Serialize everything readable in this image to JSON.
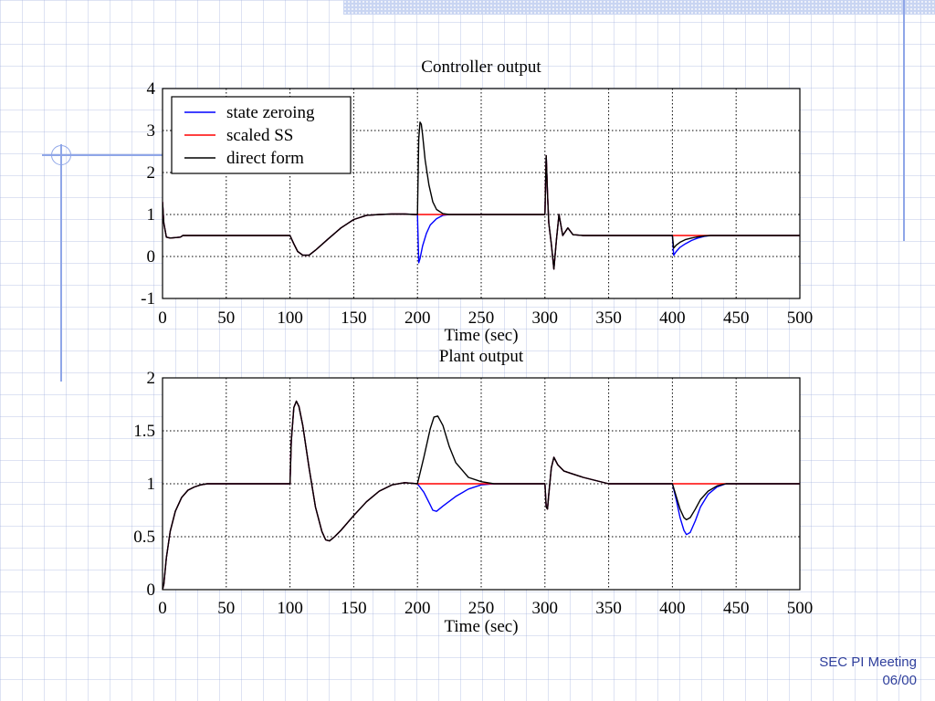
{
  "footer": {
    "line1": "SEC PI Meeting",
    "line2": "06/00"
  },
  "colors": {
    "accent": "#8fa6e8",
    "footer_text": "#2f3f9c"
  },
  "chart_data": [
    {
      "type": "line",
      "title": "Controller output",
      "xlabel": "Time (sec)",
      "ylabel": "",
      "xlim": [
        0,
        500
      ],
      "ylim": [
        -1,
        4
      ],
      "xticks": [
        0,
        50,
        100,
        150,
        200,
        250,
        300,
        350,
        400,
        450,
        500
      ],
      "yticks": [
        -1,
        0,
        1,
        2,
        3,
        4
      ],
      "grid": true,
      "legend": "top-left",
      "series": [
        {
          "name": "state zeroing",
          "color": "#0000ff",
          "x": [
            0,
            1,
            3,
            6,
            10,
            14,
            16,
            100,
            103,
            106,
            110,
            115,
            120,
            130,
            140,
            150,
            160,
            170,
            180,
            190,
            198,
            200,
            201,
            202,
            204,
            207,
            210,
            215,
            220,
            225,
            300,
            301,
            302,
            303,
            305,
            307,
            309,
            311,
            314,
            318,
            322,
            330,
            400,
            401,
            403,
            406,
            410,
            415,
            420,
            425,
            430,
            500
          ],
          "y": [
            1.3,
            0.8,
            0.46,
            0.44,
            0.45,
            0.46,
            0.5,
            0.5,
            0.3,
            0.12,
            0.03,
            0.03,
            0.15,
            0.42,
            0.68,
            0.88,
            0.98,
            1.0,
            1.01,
            1.01,
            1.0,
            1.0,
            -0.15,
            -0.05,
            0.25,
            0.55,
            0.75,
            0.9,
            0.98,
            1.0,
            1.0,
            2.4,
            1.5,
            0.8,
            0.3,
            -0.3,
            0.4,
            1.0,
            0.5,
            0.68,
            0.52,
            0.5,
            0.5,
            0.03,
            0.12,
            0.22,
            0.3,
            0.38,
            0.44,
            0.48,
            0.5,
            0.5
          ]
        },
        {
          "name": "scaled SS",
          "color": "#ff0000",
          "x": [
            0,
            1,
            3,
            6,
            10,
            14,
            16,
            100,
            103,
            106,
            110,
            115,
            120,
            130,
            140,
            150,
            160,
            170,
            180,
            190,
            198,
            200,
            300,
            301,
            302,
            303,
            305,
            307,
            309,
            311,
            314,
            318,
            322,
            330,
            500
          ],
          "y": [
            1.3,
            0.8,
            0.46,
            0.44,
            0.45,
            0.46,
            0.5,
            0.5,
            0.3,
            0.12,
            0.03,
            0.03,
            0.15,
            0.42,
            0.68,
            0.88,
            0.98,
            1.0,
            1.01,
            1.01,
            1.0,
            1.0,
            1.0,
            2.4,
            1.5,
            0.8,
            0.3,
            -0.3,
            0.4,
            1.0,
            0.5,
            0.68,
            0.52,
            0.5,
            0.5
          ]
        },
        {
          "name": "direct form",
          "color": "#000000",
          "x": [
            0,
            1,
            3,
            6,
            10,
            14,
            16,
            100,
            103,
            106,
            110,
            115,
            120,
            130,
            140,
            150,
            160,
            170,
            180,
            190,
            198,
            200,
            201,
            202,
            203,
            204,
            206,
            209,
            212,
            215,
            220,
            225,
            300,
            301,
            302,
            303,
            305,
            307,
            309,
            311,
            314,
            318,
            322,
            330,
            400,
            401,
            403,
            406,
            410,
            415,
            420,
            425,
            430,
            500
          ],
          "y": [
            1.3,
            0.8,
            0.46,
            0.44,
            0.45,
            0.46,
            0.5,
            0.5,
            0.3,
            0.12,
            0.03,
            0.03,
            0.15,
            0.42,
            0.68,
            0.88,
            0.98,
            1.0,
            1.01,
            1.01,
            1.0,
            1.0,
            2.8,
            3.2,
            3.15,
            2.9,
            2.3,
            1.7,
            1.3,
            1.12,
            1.02,
            1.0,
            1.0,
            2.4,
            1.5,
            0.8,
            0.3,
            -0.3,
            0.4,
            1.0,
            0.5,
            0.68,
            0.52,
            0.5,
            0.5,
            0.2,
            0.27,
            0.34,
            0.4,
            0.44,
            0.47,
            0.49,
            0.5,
            0.5
          ]
        }
      ]
    },
    {
      "type": "line",
      "title": "Plant output",
      "xlabel": "Time (sec)",
      "ylabel": "",
      "xlim": [
        0,
        500
      ],
      "ylim": [
        0,
        2
      ],
      "xticks": [
        0,
        50,
        100,
        150,
        200,
        250,
        300,
        350,
        400,
        450,
        500
      ],
      "yticks": [
        0,
        0.5,
        1,
        1.5,
        2
      ],
      "ytick_labels": [
        "0",
        "0.5",
        "1",
        "1.5",
        "2"
      ],
      "grid": true,
      "series": [
        {
          "name": "state zeroing",
          "color": "#0000ff",
          "x": [
            0,
            1,
            3,
            6,
            10,
            15,
            20,
            25,
            30,
            35,
            40,
            50,
            100,
            101,
            103,
            105,
            107,
            110,
            115,
            120,
            125,
            128,
            131,
            135,
            140,
            150,
            160,
            170,
            180,
            190,
            200,
            205,
            210,
            212,
            215,
            220,
            230,
            240,
            250,
            260,
            300,
            301,
            302,
            303,
            305,
            307,
            310,
            315,
            320,
            330,
            340,
            350,
            400,
            403,
            406,
            409,
            411,
            414,
            418,
            422,
            428,
            435,
            442,
            450,
            500
          ],
          "y": [
            0,
            0.05,
            0.3,
            0.55,
            0.74,
            0.87,
            0.94,
            0.97,
            0.99,
            1.0,
            1.0,
            1.0,
            1.0,
            1.4,
            1.72,
            1.78,
            1.73,
            1.55,
            1.15,
            0.78,
            0.55,
            0.47,
            0.46,
            0.5,
            0.56,
            0.7,
            0.83,
            0.93,
            0.99,
            1.01,
            1.0,
            0.92,
            0.8,
            0.75,
            0.74,
            0.79,
            0.88,
            0.95,
            0.99,
            1.0,
            1.0,
            0.78,
            0.76,
            0.9,
            1.15,
            1.25,
            1.18,
            1.12,
            1.1,
            1.06,
            1.03,
            1.0,
            1.0,
            0.85,
            0.68,
            0.56,
            0.52,
            0.54,
            0.65,
            0.78,
            0.9,
            0.97,
            1.0,
            1.0,
            1.0
          ]
        },
        {
          "name": "scaled SS",
          "color": "#ff0000",
          "x": [
            0,
            1,
            3,
            6,
            10,
            15,
            20,
            25,
            30,
            35,
            40,
            50,
            100,
            101,
            103,
            105,
            107,
            110,
            115,
            120,
            125,
            128,
            131,
            135,
            140,
            150,
            160,
            170,
            180,
            190,
            200,
            300,
            301,
            302,
            303,
            305,
            307,
            310,
            315,
            320,
            330,
            340,
            350,
            500
          ],
          "y": [
            0,
            0.05,
            0.3,
            0.55,
            0.74,
            0.87,
            0.94,
            0.97,
            0.99,
            1.0,
            1.0,
            1.0,
            1.0,
            1.4,
            1.72,
            1.78,
            1.73,
            1.55,
            1.15,
            0.78,
            0.55,
            0.47,
            0.46,
            0.5,
            0.56,
            0.7,
            0.83,
            0.93,
            0.99,
            1.01,
            1.0,
            1.0,
            0.78,
            0.76,
            0.9,
            1.15,
            1.25,
            1.18,
            1.12,
            1.1,
            1.06,
            1.03,
            1.0,
            1.0
          ]
        },
        {
          "name": "direct form",
          "color": "#000000",
          "x": [
            0,
            1,
            3,
            6,
            10,
            15,
            20,
            25,
            30,
            35,
            40,
            50,
            100,
            101,
            103,
            105,
            107,
            110,
            115,
            120,
            125,
            128,
            131,
            135,
            140,
            150,
            160,
            170,
            180,
            190,
            200,
            205,
            210,
            213,
            216,
            220,
            225,
            230,
            240,
            250,
            260,
            300,
            301,
            302,
            303,
            305,
            307,
            310,
            315,
            320,
            330,
            340,
            350,
            400,
            403,
            406,
            409,
            411,
            414,
            418,
            422,
            428,
            435,
            442,
            450,
            500
          ],
          "y": [
            0,
            0.05,
            0.3,
            0.55,
            0.74,
            0.87,
            0.94,
            0.97,
            0.99,
            1.0,
            1.0,
            1.0,
            1.0,
            1.4,
            1.72,
            1.78,
            1.73,
            1.55,
            1.15,
            0.78,
            0.55,
            0.47,
            0.46,
            0.5,
            0.56,
            0.7,
            0.83,
            0.93,
            0.99,
            1.01,
            1.0,
            1.25,
            1.52,
            1.63,
            1.64,
            1.55,
            1.35,
            1.2,
            1.06,
            1.02,
            1.0,
            1.0,
            0.78,
            0.76,
            0.9,
            1.15,
            1.25,
            1.18,
            1.12,
            1.1,
            1.06,
            1.03,
            1.0,
            1.0,
            0.88,
            0.76,
            0.68,
            0.66,
            0.68,
            0.76,
            0.85,
            0.93,
            0.98,
            1.0,
            1.0,
            1.0
          ]
        }
      ]
    }
  ]
}
